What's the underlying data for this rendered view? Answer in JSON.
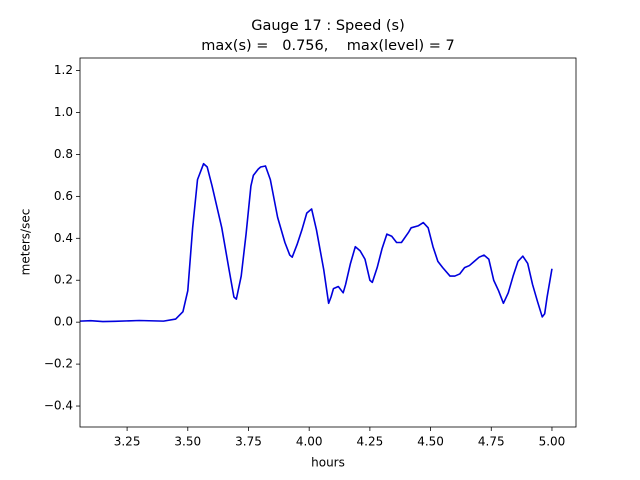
{
  "chart_data": {
    "type": "line",
    "title": "Gauge 17 : Speed (s)",
    "subtitle": "max(s) =   0.756,    max(level) = 7",
    "xlabel": "hours",
    "ylabel": "meters/sec",
    "xlim": [
      3.056,
      5.099
    ],
    "ylim": [
      -0.5,
      1.26
    ],
    "xticks": [
      3.25,
      {
        "value": 3.5,
        "label": "3.50"
      },
      3.75,
      {
        "value": 4,
        "label": "4.00"
      },
      4.25,
      {
        "value": 4.5,
        "label": "4.50"
      },
      4.75,
      {
        "value": 5,
        "label": "5.00"
      }
    ],
    "yticks": [
      {
        "value": -0.4,
        "label": "−0.4"
      },
      {
        "value": -0.2,
        "label": "−0.2"
      },
      {
        "value": 0,
        "label": "0.0"
      },
      0.2,
      0.4,
      0.6,
      0.8,
      {
        "value": 1,
        "label": "1.0"
      },
      1.2
    ],
    "grid": false,
    "x": [
      3.056,
      3.1,
      3.15,
      3.2,
      3.3,
      3.4,
      3.45,
      3.48,
      3.5,
      3.52,
      3.54,
      3.565,
      3.58,
      3.6,
      3.64,
      3.67,
      3.69,
      3.7,
      3.72,
      3.74,
      3.76,
      3.77,
      3.79,
      3.8,
      3.82,
      3.84,
      3.87,
      3.9,
      3.92,
      3.93,
      3.95,
      3.97,
      3.99,
      4.01,
      4.03,
      4.06,
      4.08,
      4.09,
      4.1,
      4.12,
      4.14,
      4.15,
      4.17,
      4.19,
      4.21,
      4.23,
      4.25,
      4.26,
      4.28,
      4.3,
      4.32,
      4.34,
      4.36,
      4.38,
      4.41,
      4.42,
      4.45,
      4.47,
      4.49,
      4.51,
      4.53,
      4.55,
      4.58,
      4.6,
      4.62,
      4.64,
      4.66,
      4.68,
      4.7,
      4.72,
      4.74,
      4.76,
      4.78,
      4.8,
      4.82,
      4.84,
      4.86,
      4.88,
      4.9,
      4.92,
      4.94,
      4.96,
      4.97,
      4.98,
      5.0
    ],
    "series": [
      {
        "color": "#0000dd",
        "values": [
          0.005,
          0.007,
          0.003,
          0.004,
          0.008,
          0.005,
          0.015,
          0.05,
          0.15,
          0.45,
          0.68,
          0.756,
          0.74,
          0.65,
          0.45,
          0.25,
          0.12,
          0.11,
          0.22,
          0.42,
          0.65,
          0.7,
          0.73,
          0.74,
          0.745,
          0.68,
          0.5,
          0.38,
          0.32,
          0.31,
          0.37,
          0.44,
          0.52,
          0.54,
          0.44,
          0.25,
          0.09,
          0.12,
          0.16,
          0.17,
          0.14,
          0.18,
          0.28,
          0.36,
          0.34,
          0.3,
          0.2,
          0.19,
          0.26,
          0.35,
          0.42,
          0.41,
          0.38,
          0.38,
          0.43,
          0.45,
          0.46,
          0.475,
          0.45,
          0.36,
          0.29,
          0.26,
          0.22,
          0.22,
          0.23,
          0.26,
          0.27,
          0.29,
          0.31,
          0.32,
          0.3,
          0.2,
          0.15,
          0.09,
          0.14,
          0.22,
          0.29,
          0.315,
          0.28,
          0.18,
          0.1,
          0.025,
          0.04,
          0.12,
          0.255
        ]
      }
    ]
  }
}
